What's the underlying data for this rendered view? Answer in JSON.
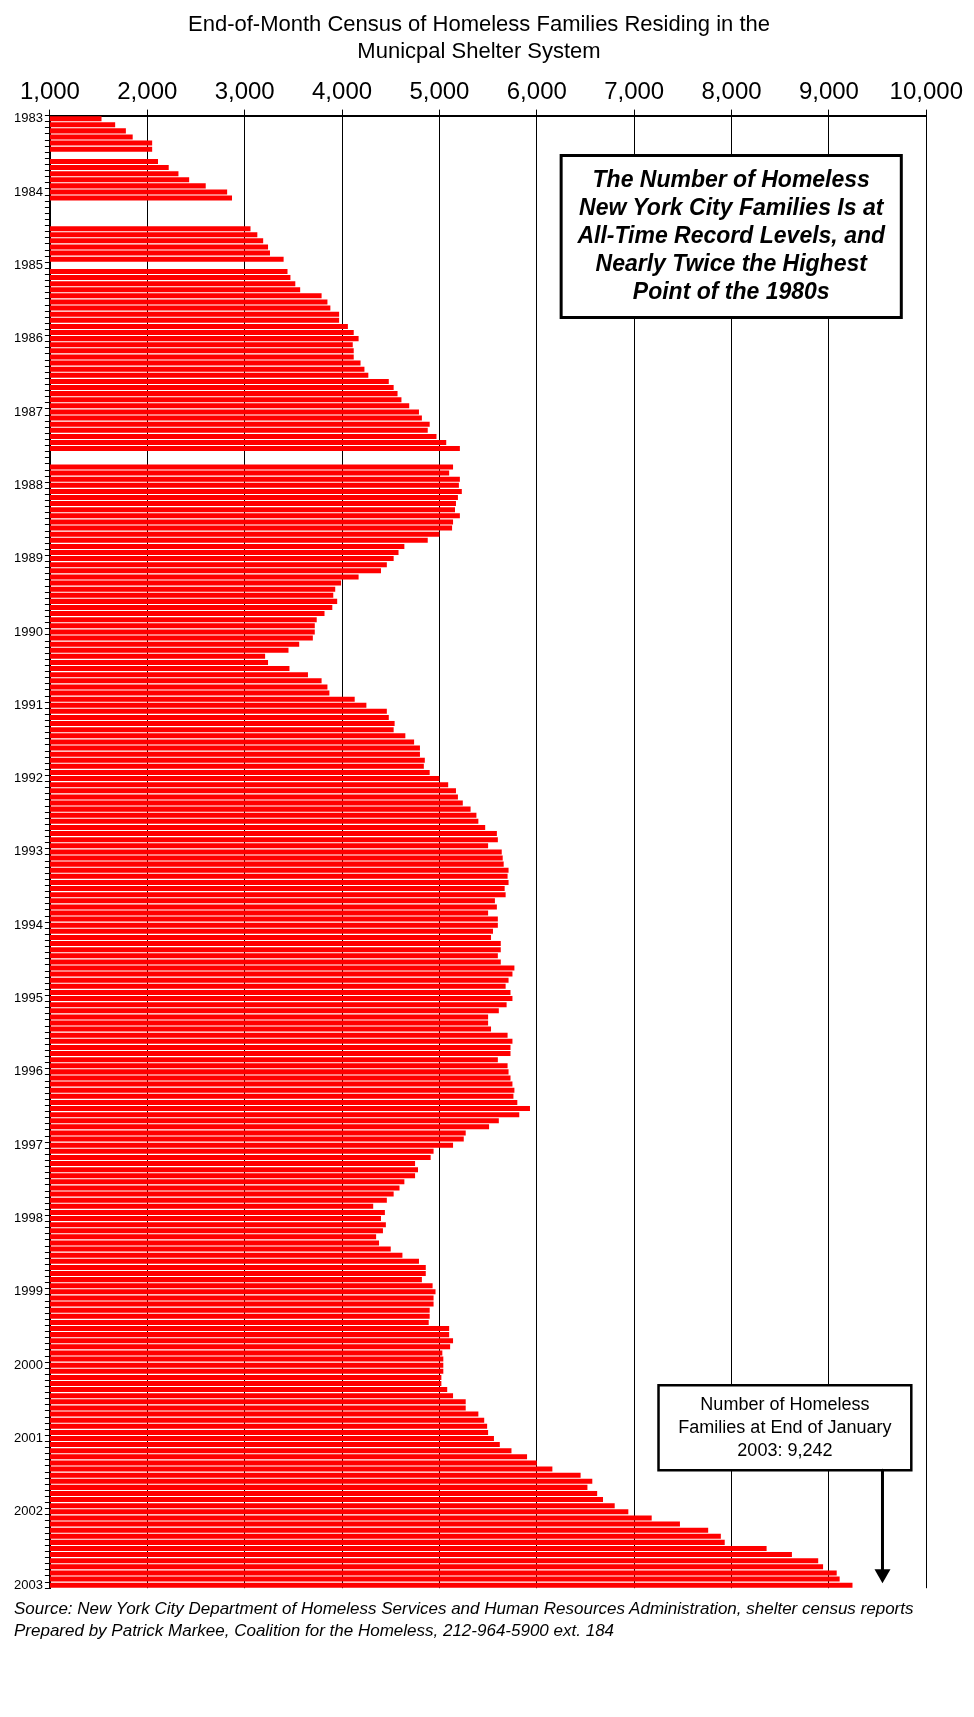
{
  "chart_data": {
    "type": "bar",
    "orientation": "horizontal",
    "title": "End-of-Month Census of Homeless Families Residing in the Municpal Shelter System",
    "categories": [
      "1983",
      null,
      null,
      null,
      null,
      null,
      null,
      null,
      null,
      null,
      null,
      null,
      "1984",
      null,
      null,
      null,
      null,
      null,
      null,
      null,
      null,
      null,
      null,
      null,
      "1985",
      null,
      null,
      null,
      null,
      null,
      null,
      null,
      null,
      null,
      null,
      null,
      "1986",
      null,
      null,
      null,
      null,
      null,
      null,
      null,
      null,
      null,
      null,
      null,
      "1987",
      null,
      null,
      null,
      null,
      null,
      null,
      null,
      null,
      null,
      null,
      null,
      "1988",
      null,
      null,
      null,
      null,
      null,
      null,
      null,
      null,
      null,
      null,
      null,
      "1989",
      null,
      null,
      null,
      null,
      null,
      null,
      null,
      null,
      null,
      null,
      null,
      "1990",
      null,
      null,
      null,
      null,
      null,
      null,
      null,
      null,
      null,
      null,
      null,
      "1991",
      null,
      null,
      null,
      null,
      null,
      null,
      null,
      null,
      null,
      null,
      null,
      "1992",
      null,
      null,
      null,
      null,
      null,
      null,
      null,
      null,
      null,
      null,
      null,
      "1993",
      null,
      null,
      null,
      null,
      null,
      null,
      null,
      null,
      null,
      null,
      null,
      "1994",
      null,
      null,
      null,
      null,
      null,
      null,
      null,
      null,
      null,
      null,
      null,
      "1995",
      null,
      null,
      null,
      null,
      null,
      null,
      null,
      null,
      null,
      null,
      null,
      "1996",
      null,
      null,
      null,
      null,
      null,
      null,
      null,
      null,
      null,
      null,
      null,
      "1997",
      null,
      null,
      null,
      null,
      null,
      null,
      null,
      null,
      null,
      null,
      null,
      "1998",
      null,
      null,
      null,
      null,
      null,
      null,
      null,
      null,
      null,
      null,
      null,
      "1999",
      null,
      null,
      null,
      null,
      null,
      null,
      null,
      null,
      null,
      null,
      null,
      "2000",
      null,
      null,
      null,
      null,
      null,
      null,
      null,
      null,
      null,
      null,
      null,
      "2001",
      null,
      null,
      null,
      null,
      null,
      null,
      null,
      null,
      null,
      null,
      null,
      "2002",
      null,
      null,
      null,
      null,
      null,
      null,
      null,
      null,
      null,
      null,
      null,
      "2003"
    ],
    "values": [
      1530,
      1670,
      1780,
      1850,
      2050,
      2050,
      null,
      2110,
      2220,
      2320,
      2430,
      2600,
      2820,
      2870,
      null,
      null,
      null,
      null,
      3060,
      3130,
      3190,
      3240,
      3260,
      3400,
      null,
      3440,
      3470,
      3520,
      3570,
      3790,
      3850,
      3880,
      3970,
      3970,
      4060,
      4120,
      4170,
      4110,
      4120,
      4120,
      4190,
      4230,
      4270,
      4480,
      4530,
      4570,
      4610,
      4690,
      4790,
      4820,
      4900,
      4880,
      4970,
      5070,
      5210,
      null,
      null,
      5140,
      5100,
      5210,
      5200,
      5230,
      5190,
      5170,
      5160,
      5210,
      5140,
      5130,
      5000,
      4880,
      4640,
      4580,
      4530,
      4460,
      4400,
      4170,
      3990,
      3930,
      3910,
      3950,
      3900,
      3820,
      3740,
      3720,
      3720,
      3700,
      3560,
      3450,
      3210,
      3240,
      3460,
      3650,
      3790,
      3850,
      3870,
      4130,
      4250,
      4460,
      4480,
      4540,
      4530,
      4650,
      4740,
      4800,
      4800,
      4850,
      4840,
      4900,
      5000,
      5090,
      5170,
      5190,
      5240,
      5320,
      5380,
      5400,
      5470,
      5590,
      5600,
      5500,
      5640,
      5650,
      5660,
      5710,
      5700,
      5710,
      5670,
      5680,
      5570,
      5590,
      5500,
      5600,
      5600,
      5550,
      5530,
      5630,
      5630,
      5600,
      5630,
      5770,
      5750,
      5710,
      5680,
      5730,
      5750,
      5690,
      5610,
      5500,
      5500,
      5530,
      5700,
      5750,
      5730,
      5730,
      5600,
      5700,
      5710,
      5730,
      5750,
      5770,
      5760,
      5800,
      5930,
      5820,
      5610,
      5510,
      5270,
      5250,
      5140,
      4940,
      4910,
      4750,
      4780,
      4750,
      4640,
      4590,
      4530,
      4460,
      4320,
      4440,
      4400,
      4450,
      4420,
      4350,
      4380,
      4500,
      4620,
      4790,
      4860,
      4860,
      4820,
      4930,
      4960,
      4940,
      4940,
      4900,
      4900,
      4890,
      5100,
      5100,
      5140,
      5110,
      5030,
      5040,
      5040,
      5040,
      5020,
      5020,
      5080,
      5140,
      5270,
      5270,
      5400,
      5460,
      5490,
      5500,
      5560,
      5620,
      5740,
      5900,
      6000,
      6160,
      6450,
      6570,
      6520,
      6620,
      6680,
      6800,
      6940,
      7180,
      7470,
      7760,
      7890,
      7930,
      8360,
      8620,
      8890,
      8940,
      9080,
      9110,
      9242
    ],
    "color": "#ff0000",
    "xlim": [
      1000,
      10000
    ],
    "xticks": [
      {
        "value": 1000,
        "label": "1,000"
      },
      {
        "value": 2000,
        "label": "2,000"
      },
      {
        "value": 3000,
        "label": "3,000"
      },
      {
        "value": 4000,
        "label": "4,000"
      },
      {
        "value": 5000,
        "label": "5,000"
      },
      {
        "value": 6000,
        "label": "6,000"
      },
      {
        "value": 7000,
        "label": "7,000"
      },
      {
        "value": 8000,
        "label": "8,000"
      },
      {
        "value": 9000,
        "label": "9,000"
      },
      {
        "value": 10000,
        "label": "10,000"
      }
    ],
    "grid": "x",
    "annotations": [
      "The Number of Homeless New York City Families Is at All-Time Record Levels, and Nearly Twice the Highest Point of the 1980s",
      "Number of Homeless Families at End of January 2003: 9,242",
      "Source: New York City Department of Homeless Services and Human Resources Administration, shelter census reports",
      "Prepared by Patrick Markee, Coalition for the Homeless, 212-964-5900 ext. 184"
    ]
  }
}
